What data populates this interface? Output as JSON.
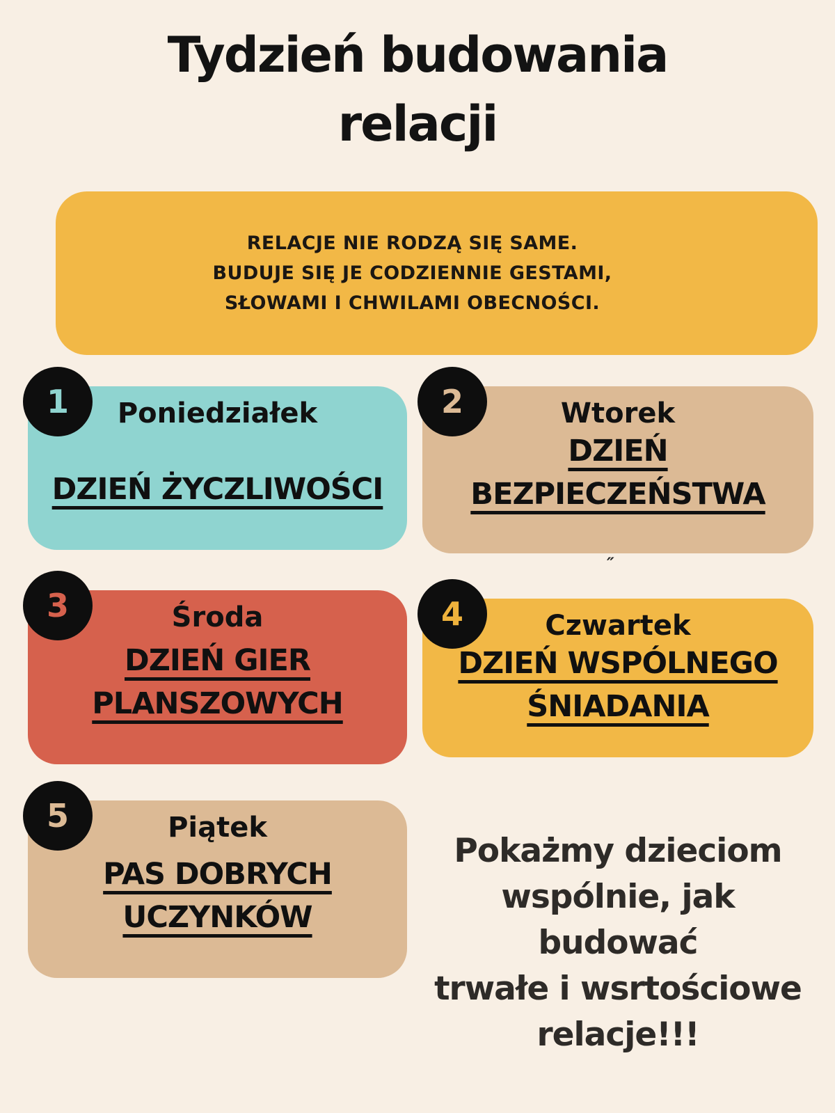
{
  "page": {
    "title_line1": "Tydzień budowania",
    "title_line2": "relacji"
  },
  "colors": {
    "background": "#f8efe4",
    "accent_yellow": "#f2b846",
    "teal": "#8fd4d0",
    "tan": "#dcba95",
    "coral": "#d6614d",
    "badge_black": "#0e0e0e",
    "text_black": "#131313",
    "closing_text": "#2e2b28"
  },
  "intro": {
    "lines": [
      "RELACJE NIE RODZĄ SIĘ SAME.",
      "BUDUJE SIĘ JE CODZIENNIE GESTAMI,",
      "SŁOWAMI I CHWILAMI OBECNOŚCI."
    ]
  },
  "days": [
    {
      "number": "1",
      "name": "Poniedziałek",
      "event_lines": [
        "DZIEŃ ŻYCZLIWOŚCI"
      ],
      "color": "#8fd4d0",
      "number_color": "#8fd4d0"
    },
    {
      "number": "2",
      "name": "Wtorek",
      "event_lines": [
        "DZIEŃ",
        "BEZPIECZEŃSTWA"
      ],
      "color": "#dcba95",
      "number_color": "#dcba95"
    },
    {
      "number": "3",
      "name": "Środa",
      "event_lines": [
        "DZIEŃ GIER",
        "PLANSZOWYCH"
      ],
      "color": "#d6614d",
      "number_color": "#d6614d"
    },
    {
      "number": "4",
      "name": "Czwartek",
      "event_lines": [
        "DZIEŃ WSPÓLNEGO",
        "ŚNIADANIA"
      ],
      "color": "#f2b846",
      "number_color": "#efb23c"
    },
    {
      "number": "5",
      "name": "Piątek",
      "event_lines": [
        "PAS DOBRYCH",
        "UCZYNKÓW"
      ],
      "color": "#dcba95",
      "number_color": "#dcba95"
    }
  ],
  "stray_quote_mark": "″",
  "closing": {
    "lines": [
      "Pokażmy dzieciom",
      "wspólnie, jak budować",
      "trwałe i wsrtościowe",
      "relacje!!!"
    ]
  }
}
